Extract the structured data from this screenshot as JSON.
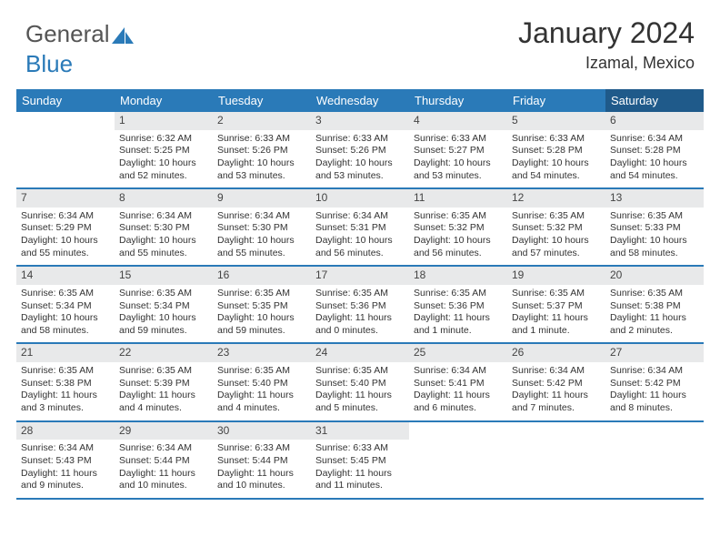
{
  "logo": {
    "text_gray": "General",
    "text_blue": "Blue",
    "icon_color": "#2a7ab8"
  },
  "header": {
    "month_title": "January 2024",
    "location": "Izamal, Mexico"
  },
  "style": {
    "header_bg": "#2a7ab8",
    "saturday_bg": "#1f5a8a",
    "daynum_bg": "#e8e9ea",
    "week_border": "#2a7ab8"
  },
  "weekdays": [
    "Sunday",
    "Monday",
    "Tuesday",
    "Wednesday",
    "Thursday",
    "Friday",
    "Saturday"
  ],
  "weeks": [
    [
      {
        "day": "",
        "sunrise": "",
        "sunset": "",
        "daylight1": "",
        "daylight2": ""
      },
      {
        "day": "1",
        "sunrise": "Sunrise: 6:32 AM",
        "sunset": "Sunset: 5:25 PM",
        "daylight1": "Daylight: 10 hours",
        "daylight2": "and 52 minutes."
      },
      {
        "day": "2",
        "sunrise": "Sunrise: 6:33 AM",
        "sunset": "Sunset: 5:26 PM",
        "daylight1": "Daylight: 10 hours",
        "daylight2": "and 53 minutes."
      },
      {
        "day": "3",
        "sunrise": "Sunrise: 6:33 AM",
        "sunset": "Sunset: 5:26 PM",
        "daylight1": "Daylight: 10 hours",
        "daylight2": "and 53 minutes."
      },
      {
        "day": "4",
        "sunrise": "Sunrise: 6:33 AM",
        "sunset": "Sunset: 5:27 PM",
        "daylight1": "Daylight: 10 hours",
        "daylight2": "and 53 minutes."
      },
      {
        "day": "5",
        "sunrise": "Sunrise: 6:33 AM",
        "sunset": "Sunset: 5:28 PM",
        "daylight1": "Daylight: 10 hours",
        "daylight2": "and 54 minutes."
      },
      {
        "day": "6",
        "sunrise": "Sunrise: 6:34 AM",
        "sunset": "Sunset: 5:28 PM",
        "daylight1": "Daylight: 10 hours",
        "daylight2": "and 54 minutes."
      }
    ],
    [
      {
        "day": "7",
        "sunrise": "Sunrise: 6:34 AM",
        "sunset": "Sunset: 5:29 PM",
        "daylight1": "Daylight: 10 hours",
        "daylight2": "and 55 minutes."
      },
      {
        "day": "8",
        "sunrise": "Sunrise: 6:34 AM",
        "sunset": "Sunset: 5:30 PM",
        "daylight1": "Daylight: 10 hours",
        "daylight2": "and 55 minutes."
      },
      {
        "day": "9",
        "sunrise": "Sunrise: 6:34 AM",
        "sunset": "Sunset: 5:30 PM",
        "daylight1": "Daylight: 10 hours",
        "daylight2": "and 55 minutes."
      },
      {
        "day": "10",
        "sunrise": "Sunrise: 6:34 AM",
        "sunset": "Sunset: 5:31 PM",
        "daylight1": "Daylight: 10 hours",
        "daylight2": "and 56 minutes."
      },
      {
        "day": "11",
        "sunrise": "Sunrise: 6:35 AM",
        "sunset": "Sunset: 5:32 PM",
        "daylight1": "Daylight: 10 hours",
        "daylight2": "and 56 minutes."
      },
      {
        "day": "12",
        "sunrise": "Sunrise: 6:35 AM",
        "sunset": "Sunset: 5:32 PM",
        "daylight1": "Daylight: 10 hours",
        "daylight2": "and 57 minutes."
      },
      {
        "day": "13",
        "sunrise": "Sunrise: 6:35 AM",
        "sunset": "Sunset: 5:33 PM",
        "daylight1": "Daylight: 10 hours",
        "daylight2": "and 58 minutes."
      }
    ],
    [
      {
        "day": "14",
        "sunrise": "Sunrise: 6:35 AM",
        "sunset": "Sunset: 5:34 PM",
        "daylight1": "Daylight: 10 hours",
        "daylight2": "and 58 minutes."
      },
      {
        "day": "15",
        "sunrise": "Sunrise: 6:35 AM",
        "sunset": "Sunset: 5:34 PM",
        "daylight1": "Daylight: 10 hours",
        "daylight2": "and 59 minutes."
      },
      {
        "day": "16",
        "sunrise": "Sunrise: 6:35 AM",
        "sunset": "Sunset: 5:35 PM",
        "daylight1": "Daylight: 10 hours",
        "daylight2": "and 59 minutes."
      },
      {
        "day": "17",
        "sunrise": "Sunrise: 6:35 AM",
        "sunset": "Sunset: 5:36 PM",
        "daylight1": "Daylight: 11 hours",
        "daylight2": "and 0 minutes."
      },
      {
        "day": "18",
        "sunrise": "Sunrise: 6:35 AM",
        "sunset": "Sunset: 5:36 PM",
        "daylight1": "Daylight: 11 hours",
        "daylight2": "and 1 minute."
      },
      {
        "day": "19",
        "sunrise": "Sunrise: 6:35 AM",
        "sunset": "Sunset: 5:37 PM",
        "daylight1": "Daylight: 11 hours",
        "daylight2": "and 1 minute."
      },
      {
        "day": "20",
        "sunrise": "Sunrise: 6:35 AM",
        "sunset": "Sunset: 5:38 PM",
        "daylight1": "Daylight: 11 hours",
        "daylight2": "and 2 minutes."
      }
    ],
    [
      {
        "day": "21",
        "sunrise": "Sunrise: 6:35 AM",
        "sunset": "Sunset: 5:38 PM",
        "daylight1": "Daylight: 11 hours",
        "daylight2": "and 3 minutes."
      },
      {
        "day": "22",
        "sunrise": "Sunrise: 6:35 AM",
        "sunset": "Sunset: 5:39 PM",
        "daylight1": "Daylight: 11 hours",
        "daylight2": "and 4 minutes."
      },
      {
        "day": "23",
        "sunrise": "Sunrise: 6:35 AM",
        "sunset": "Sunset: 5:40 PM",
        "daylight1": "Daylight: 11 hours",
        "daylight2": "and 4 minutes."
      },
      {
        "day": "24",
        "sunrise": "Sunrise: 6:35 AM",
        "sunset": "Sunset: 5:40 PM",
        "daylight1": "Daylight: 11 hours",
        "daylight2": "and 5 minutes."
      },
      {
        "day": "25",
        "sunrise": "Sunrise: 6:34 AM",
        "sunset": "Sunset: 5:41 PM",
        "daylight1": "Daylight: 11 hours",
        "daylight2": "and 6 minutes."
      },
      {
        "day": "26",
        "sunrise": "Sunrise: 6:34 AM",
        "sunset": "Sunset: 5:42 PM",
        "daylight1": "Daylight: 11 hours",
        "daylight2": "and 7 minutes."
      },
      {
        "day": "27",
        "sunrise": "Sunrise: 6:34 AM",
        "sunset": "Sunset: 5:42 PM",
        "daylight1": "Daylight: 11 hours",
        "daylight2": "and 8 minutes."
      }
    ],
    [
      {
        "day": "28",
        "sunrise": "Sunrise: 6:34 AM",
        "sunset": "Sunset: 5:43 PM",
        "daylight1": "Daylight: 11 hours",
        "daylight2": "and 9 minutes."
      },
      {
        "day": "29",
        "sunrise": "Sunrise: 6:34 AM",
        "sunset": "Sunset: 5:44 PM",
        "daylight1": "Daylight: 11 hours",
        "daylight2": "and 10 minutes."
      },
      {
        "day": "30",
        "sunrise": "Sunrise: 6:33 AM",
        "sunset": "Sunset: 5:44 PM",
        "daylight1": "Daylight: 11 hours",
        "daylight2": "and 10 minutes."
      },
      {
        "day": "31",
        "sunrise": "Sunrise: 6:33 AM",
        "sunset": "Sunset: 5:45 PM",
        "daylight1": "Daylight: 11 hours",
        "daylight2": "and 11 minutes."
      },
      {
        "day": "",
        "sunrise": "",
        "sunset": "",
        "daylight1": "",
        "daylight2": ""
      },
      {
        "day": "",
        "sunrise": "",
        "sunset": "",
        "daylight1": "",
        "daylight2": ""
      },
      {
        "day": "",
        "sunrise": "",
        "sunset": "",
        "daylight1": "",
        "daylight2": ""
      }
    ]
  ]
}
